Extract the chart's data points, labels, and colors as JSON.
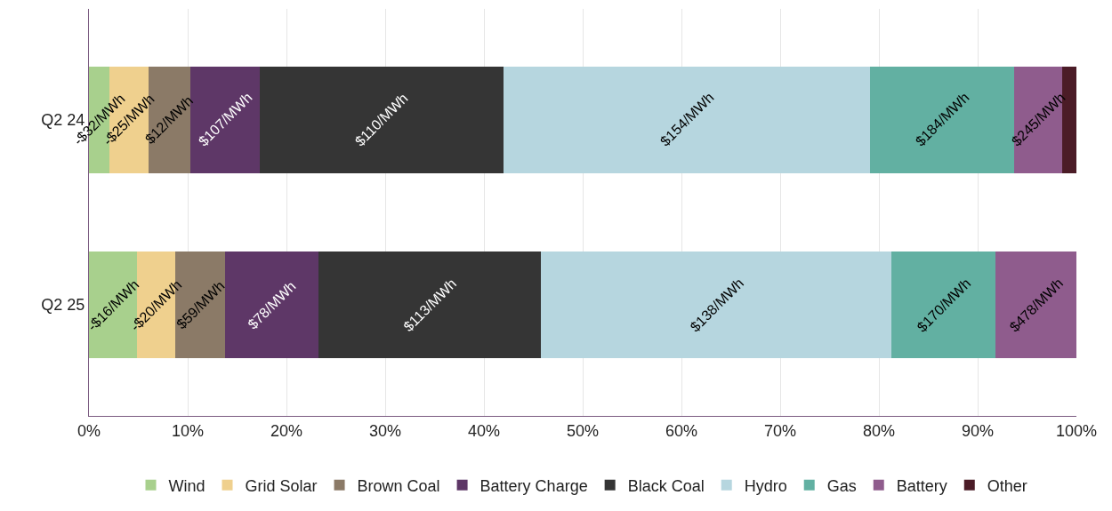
{
  "chart_data": {
    "type": "bar",
    "orientation": "horizontal",
    "stacked": true,
    "categories": [
      "Q2 24",
      "Q2 25"
    ],
    "xlim": [
      0,
      100
    ],
    "xticks": [
      {
        "value": 0,
        "label": "0%"
      },
      {
        "value": 10,
        "label": "10%"
      },
      {
        "value": 20,
        "label": "20%"
      },
      {
        "value": 30,
        "label": "30%"
      },
      {
        "value": 40,
        "label": "40%"
      },
      {
        "value": 50,
        "label": "50%"
      },
      {
        "value": 60,
        "label": "60%"
      },
      {
        "value": 70,
        "label": "70%"
      },
      {
        "value": 80,
        "label": "80%"
      },
      {
        "value": 90,
        "label": "90%"
      },
      {
        "value": 100,
        "label": "100%"
      }
    ],
    "grid": "x",
    "legend": "bottom",
    "series": [
      {
        "name": "Wind",
        "color": "#a8d08d",
        "values": [
          2.1,
          4.9
        ]
      },
      {
        "name": "Grid Solar",
        "color": "#efd08e",
        "values": [
          3.9,
          3.8
        ]
      },
      {
        "name": "Brown Coal",
        "color": "#8b7a67",
        "values": [
          4.3,
          5.1
        ]
      },
      {
        "name": "Battery Charge",
        "color": "#5e3767",
        "values": [
          7.0,
          9.4
        ]
      },
      {
        "name": "Black Coal",
        "color": "#353535",
        "values": [
          24.7,
          22.6
        ]
      },
      {
        "name": "Hydro",
        "color": "#b6d6df",
        "values": [
          37.1,
          35.5
        ]
      },
      {
        "name": "Gas",
        "color": "#62b0a2",
        "values": [
          14.6,
          10.5
        ]
      },
      {
        "name": "Battery",
        "color": "#8f5c8d",
        "values": [
          4.9,
          8.2
        ]
      },
      {
        "name": "Other",
        "color": "#4b1c27",
        "values": [
          1.4,
          null
        ]
      }
    ],
    "annotations": [
      "-$32/MWh",
      "-$25/MWh",
      "$12/MWh",
      "$107/MWh",
      "$110/MWh",
      "$154/MWh",
      "$184/MWh",
      "$245/MWh",
      null,
      "-$16/MWh",
      "-$20/MWh",
      "$59/MWh",
      "$78/MWh",
      "$113/MWh",
      "$138/MWh",
      "$170/MWh",
      "$478/MWh"
    ]
  }
}
